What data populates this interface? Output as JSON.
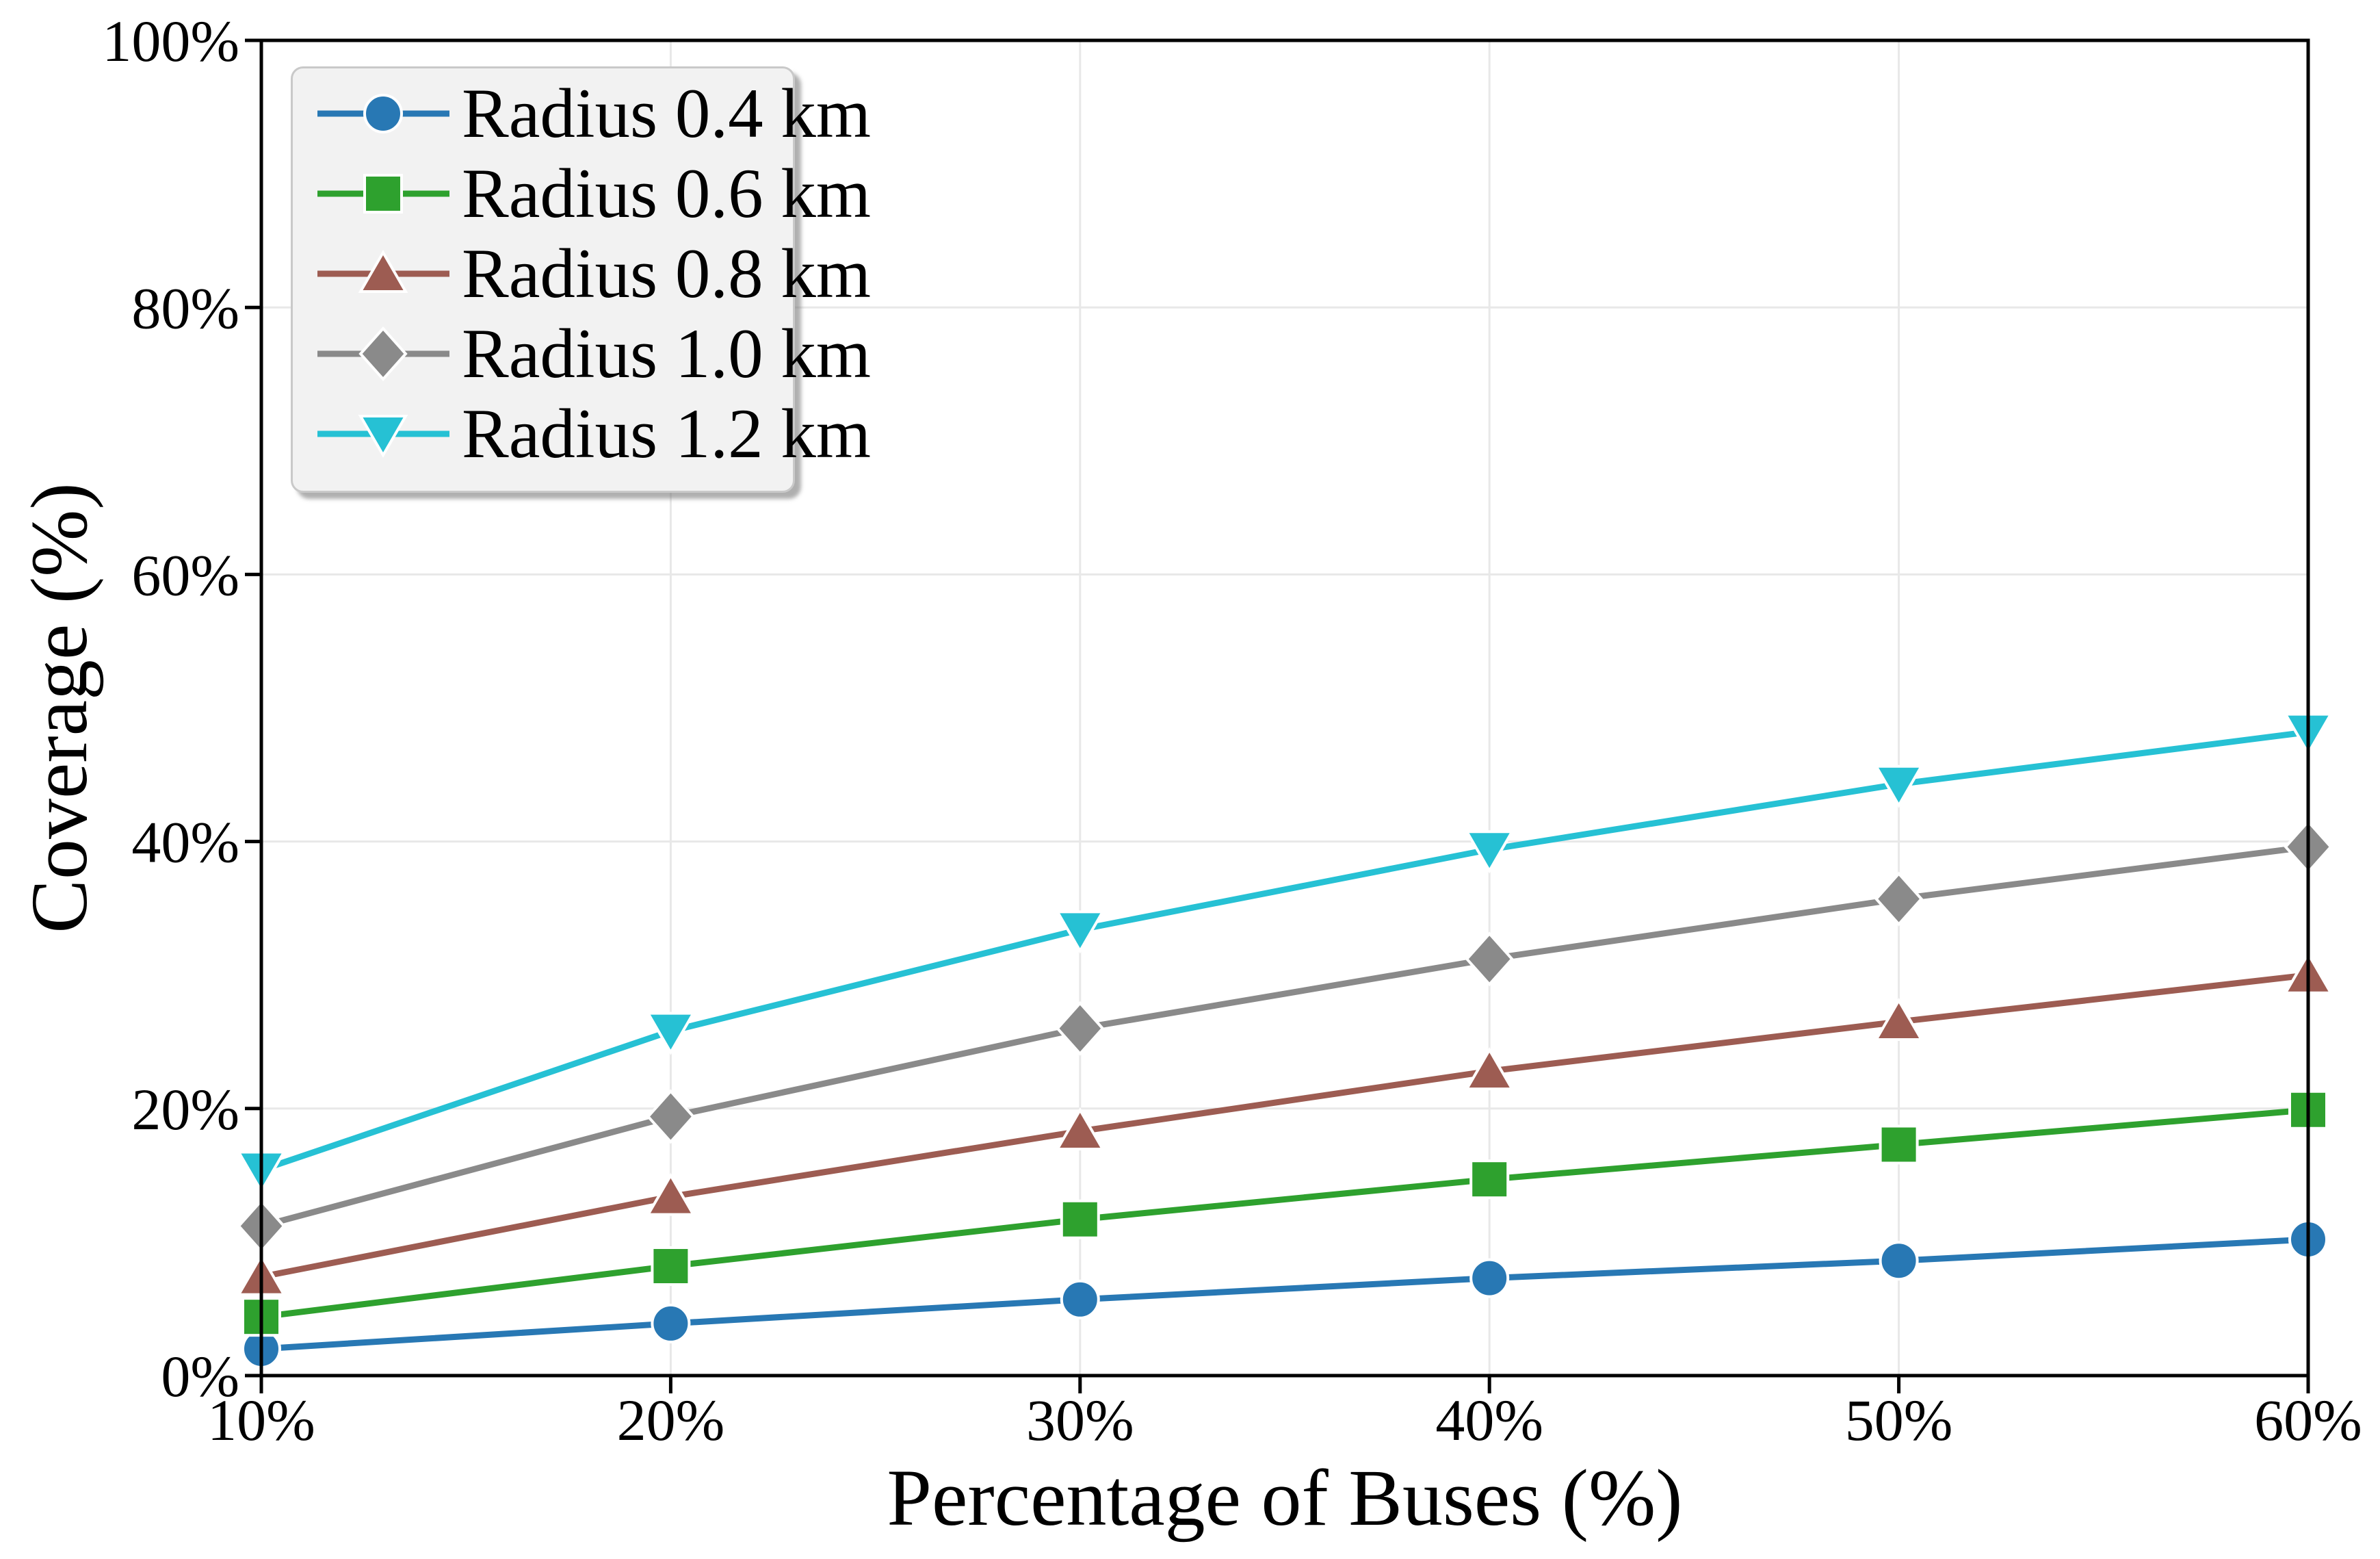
{
  "chart_data": {
    "type": "line",
    "title": "",
    "xlabel": "Percentage of Buses (%)",
    "ylabel": "Coverage (%)",
    "x": [
      10,
      20,
      30,
      40,
      50,
      60
    ],
    "xtick_labels": [
      "10%",
      "20%",
      "30%",
      "40%",
      "50%",
      "60%"
    ],
    "yticks": [
      0,
      20,
      40,
      60,
      80,
      100
    ],
    "ytick_labels": [
      "0%",
      "20%",
      "40%",
      "60%",
      "80%",
      "100%"
    ],
    "xlim": [
      10,
      60
    ],
    "ylim": [
      0,
      100
    ],
    "grid": true,
    "legend_position": "upper-left",
    "series": [
      {
        "name": "Radius 0.4 km",
        "marker": "circle",
        "color": "#2878b4",
        "values": [
          2.0,
          3.9,
          5.7,
          7.3,
          8.6,
          10.2
        ]
      },
      {
        "name": "Radius 0.6 km",
        "marker": "square",
        "color": "#2ea12e",
        "values": [
          4.4,
          8.2,
          11.7,
          14.7,
          17.3,
          19.9
        ]
      },
      {
        "name": "Radius 0.8 km",
        "marker": "triangle-up",
        "color": "#9d5c52",
        "values": [
          7.4,
          13.4,
          18.3,
          22.8,
          26.5,
          30.0
        ]
      },
      {
        "name": "Radius 1.0 km",
        "marker": "diamond",
        "color": "#8a8a8a",
        "values": [
          11.2,
          19.4,
          26.0,
          31.2,
          35.7,
          39.6
        ]
      },
      {
        "name": "Radius 1.2 km",
        "marker": "triangle-down",
        "color": "#26c1d4",
        "values": [
          15.4,
          25.8,
          33.4,
          39.4,
          44.3,
          48.2
        ]
      }
    ],
    "colors": {
      "grid": "#e8e8e8",
      "axis": "#000000",
      "text": "#000000",
      "legend_bg": "#f2f2f2",
      "legend_border": "#c9c9c9"
    }
  }
}
